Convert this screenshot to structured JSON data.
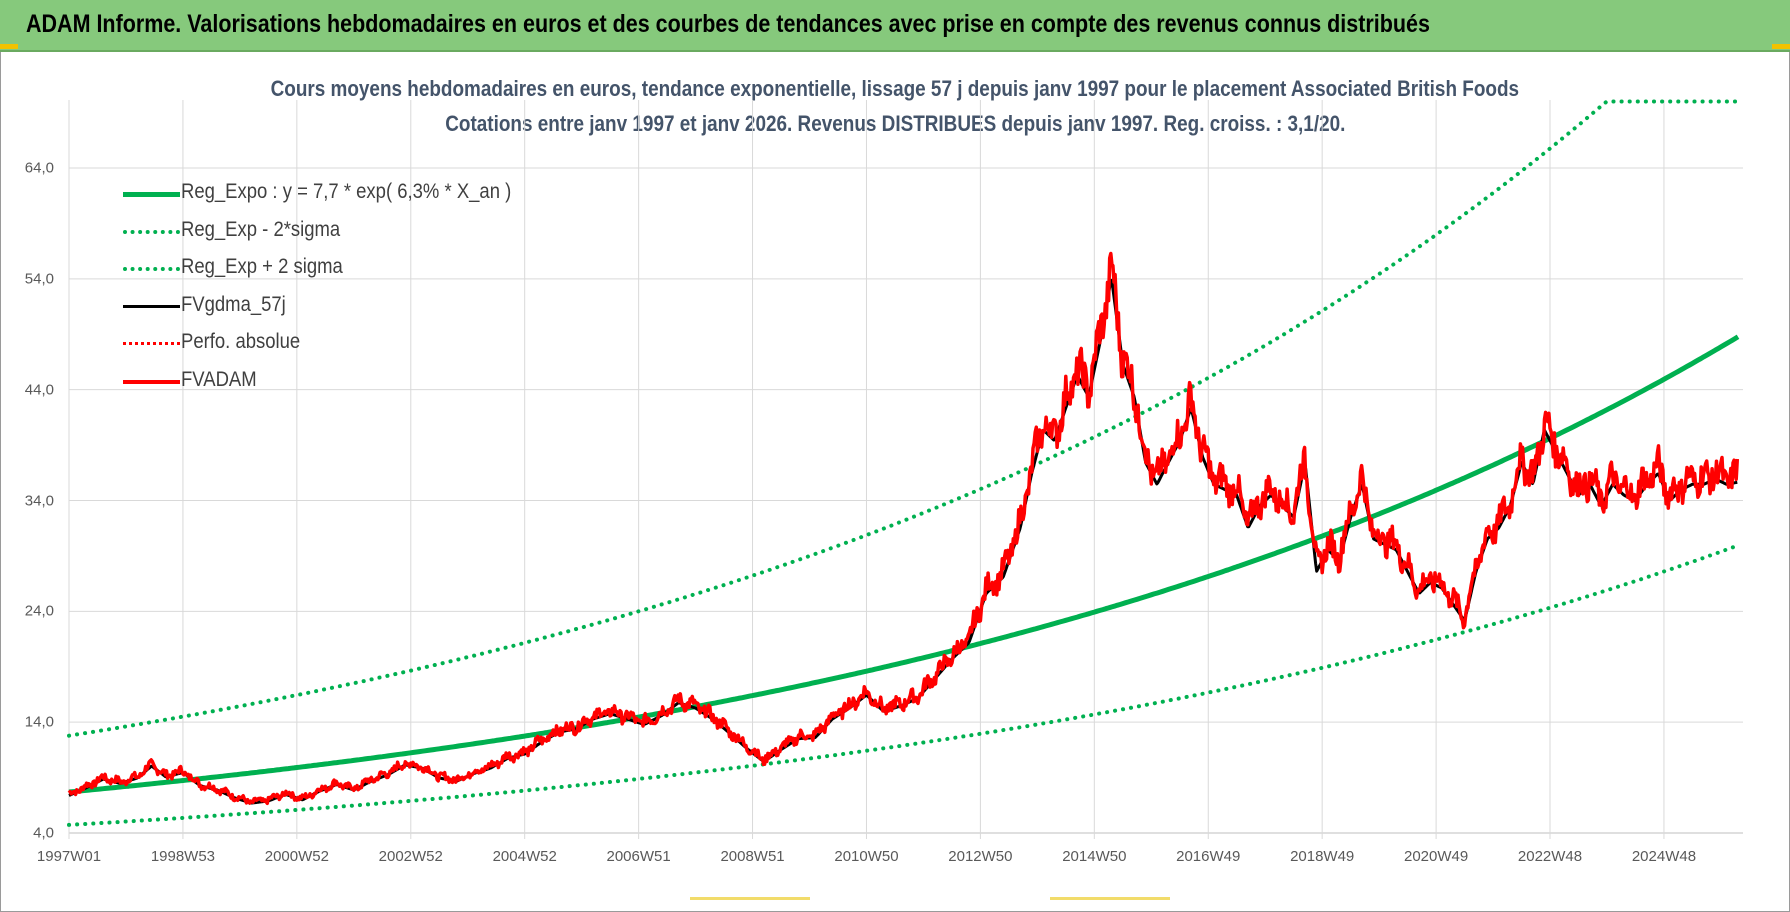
{
  "header": {
    "banner_title": "ADAM Informe. Valorisations hebdomadaires en euros et des courbes de tendances avec prise en compte des revenus connus distribués"
  },
  "colors": {
    "banner_bg": "#86c97c",
    "trend": "#00b050",
    "smoothed": "#000000",
    "price": "#ff0000",
    "title_text": "#44546a",
    "gridline": "#d9d9d9"
  },
  "chart_data": {
    "type": "line",
    "title": "Cours moyens hebdomadaires en euros, tendance exponentielle, lissage 57 j depuis janv 1997 pour le placement Associated British Foods",
    "subtitle": "Cotations entre janv 1997 et janv 2026. Revenus DISTRIBUES depuis janv 1997. Reg. croiss. : 3,1/20.",
    "xlabel": "",
    "ylabel": "",
    "x_tick_labels": [
      "1997W01",
      "1998W53",
      "2000W52",
      "2002W52",
      "2004W52",
      "2006W51",
      "2008W51",
      "2010W50",
      "2012W50",
      "2014W50",
      "2016W49",
      "2018W49",
      "2020W49",
      "2022W48",
      "2024W48"
    ],
    "x_tick_years": [
      1997.0,
      1999.0,
      2001.0,
      2003.0,
      2005.0,
      2007.0,
      2009.0,
      2011.0,
      2013.0,
      2015.0,
      2017.0,
      2019.0,
      2021.0,
      2023.0,
      2025.0
    ],
    "y_tick_labels": [
      "4,0",
      "14,0",
      "24,0",
      "34,0",
      "44,0",
      "54,0",
      "64,0"
    ],
    "y_ticks": [
      4,
      14,
      24,
      34,
      44,
      54,
      64
    ],
    "xlim": [
      1997.0,
      2026.3
    ],
    "ylim": [
      4,
      70
    ],
    "grid": true,
    "legend_position": "top-left",
    "regression": {
      "a": 7.7,
      "rate": 0.063,
      "sigma_factor_low": 0.614,
      "sigma_factor_high": 1.66,
      "y_max_display": 70
    },
    "legend": [
      {
        "label": "Reg_Expo : y = 7,7 * exp( 6,3% *  X_an )",
        "style": "solid",
        "color": "#00b050",
        "width": 5
      },
      {
        "label": "Reg_Exp - 2*sigma",
        "style": "dotted",
        "color": "#00b050",
        "width": 4
      },
      {
        "label": "Reg_Exp + 2 sigma",
        "style": "dotted",
        "color": "#00b050",
        "width": 4
      },
      {
        "label": "FVgdma_57j",
        "style": "solid",
        "color": "#000000",
        "width": 3
      },
      {
        "label": "Perfo. absolue",
        "style": "dotted",
        "color": "#ff0000",
        "width": 3
      },
      {
        "label": "FVADAM",
        "style": "solid",
        "color": "#ff0000",
        "width": 4
      }
    ],
    "series": [
      {
        "name": "FVADAM",
        "x": [
          1997.0,
          1997.3,
          1997.6,
          1997.9,
          1998.2,
          1998.45,
          1998.7,
          1999.0,
          1999.3,
          1999.6,
          1999.9,
          2000.2,
          2000.5,
          2000.8,
          2001.1,
          2001.4,
          2001.7,
          2002.0,
          2002.3,
          2002.6,
          2002.9,
          2003.2,
          2003.5,
          2003.8,
          2004.1,
          2004.4,
          2004.7,
          2005.0,
          2005.3,
          2005.6,
          2005.9,
          2006.2,
          2006.5,
          2006.8,
          2007.1,
          2007.4,
          2007.7,
          2008.0,
          2008.3,
          2008.6,
          2008.9,
          2009.2,
          2009.5,
          2009.8,
          2010.1,
          2010.4,
          2010.7,
          2011.0,
          2011.3,
          2011.6,
          2011.9,
          2012.2,
          2012.5,
          2012.8,
          2013.1,
          2013.4,
          2013.7,
          2013.9,
          2014.1,
          2014.3,
          2014.5,
          2014.7,
          2014.9,
          2015.1,
          2015.3,
          2015.5,
          2015.7,
          2015.9,
          2016.1,
          2016.3,
          2016.5,
          2016.7,
          2016.9,
          2017.1,
          2017.3,
          2017.5,
          2017.7,
          2017.9,
          2018.1,
          2018.3,
          2018.5,
          2018.7,
          2018.9,
          2019.1,
          2019.3,
          2019.5,
          2019.7,
          2019.9,
          2020.1,
          2020.3,
          2020.5,
          2020.7,
          2020.9,
          2021.1,
          2021.3,
          2021.5,
          2021.7,
          2021.9,
          2022.1,
          2022.3,
          2022.5,
          2022.7,
          2022.9,
          2023.1,
          2023.3,
          2023.5,
          2023.7,
          2023.9,
          2024.1,
          2024.3,
          2024.5,
          2024.7,
          2024.9,
          2025.1,
          2025.3,
          2025.5,
          2025.7,
          2025.9,
          2026.1,
          2026.3
        ],
        "values": [
          7.5,
          8.2,
          9.0,
          8.6,
          9.1,
          10.2,
          9.2,
          9.6,
          8.4,
          8.0,
          7.3,
          6.8,
          7.0,
          7.6,
          7.1,
          7.9,
          8.5,
          8.0,
          8.8,
          9.4,
          10.3,
          10.0,
          9.1,
          8.8,
          9.5,
          10.0,
          10.9,
          11.3,
          12.4,
          13.3,
          13.6,
          14.5,
          15.0,
          14.5,
          14.0,
          14.8,
          16.0,
          15.5,
          14.5,
          13.2,
          11.8,
          10.6,
          11.7,
          12.7,
          12.8,
          14.5,
          15.5,
          16.7,
          15.2,
          15.7,
          16.4,
          18.2,
          20.0,
          21.5,
          26.0,
          27.5,
          32.0,
          37.0,
          41.0,
          40.0,
          43.0,
          46.0,
          44.0,
          49.0,
          55.0,
          47.0,
          44.0,
          38.0,
          36.0,
          38.0,
          40.0,
          43.0,
          38.5,
          36.0,
          35.5,
          35.0,
          32.0,
          34.0,
          35.0,
          34.0,
          33.0,
          38.0,
          28.0,
          30.0,
          29.0,
          33.0,
          36.0,
          31.0,
          30.5,
          30.0,
          28.0,
          26.0,
          27.0,
          26.5,
          25.0,
          23.5,
          28.0,
          31.0,
          32.0,
          34.0,
          38.0,
          36.0,
          41.0,
          39.0,
          37.0,
          35.0,
          36.0,
          34.0,
          36.0,
          35.0,
          34.5,
          36.0,
          37.0,
          34.5,
          35.5,
          36.0,
          36.0,
          36.5,
          36.0,
          36.2
        ]
      }
    ]
  },
  "ui": {
    "bottom_marks": true
  }
}
